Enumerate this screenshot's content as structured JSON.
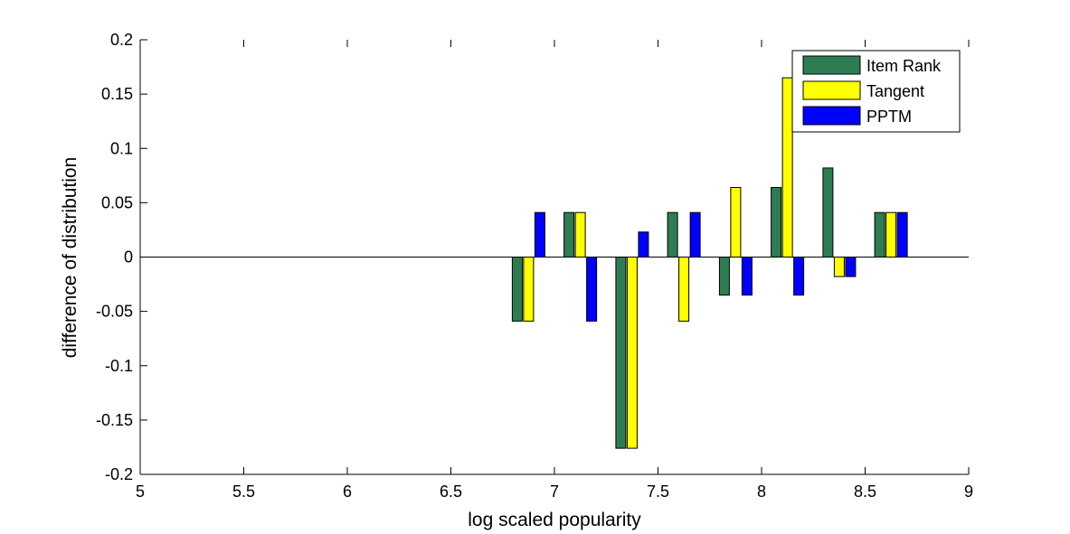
{
  "chart_data": {
    "type": "bar",
    "title": "",
    "xlabel": "log scaled popularity",
    "ylabel": "difference of distribution",
    "xlim": [
      5,
      9
    ],
    "ylim": [
      -0.2,
      0.2
    ],
    "xticks": [
      "5",
      "5.5",
      "6",
      "6.5",
      "7",
      "7.5",
      "8",
      "8.5",
      "9"
    ],
    "yticks": [
      "0.2",
      "0.15",
      "0.1",
      "0.05",
      "0",
      "-0.05",
      "-0.1",
      "-0.15",
      "-0.2"
    ],
    "grid": false,
    "legend_position": "top-right",
    "x": [
      6.875,
      7.125,
      7.375,
      7.625,
      7.875,
      8.125,
      8.375,
      8.625
    ],
    "series": [
      {
        "name": "Item Rank",
        "color": "#2e7d52",
        "values": [
          -0.059,
          0.041,
          -0.176,
          0.041,
          -0.035,
          0.064,
          0.082,
          0.041
        ]
      },
      {
        "name": "Tangent",
        "color": "#ffff00",
        "values": [
          -0.059,
          0.041,
          -0.176,
          -0.059,
          0.064,
          0.165,
          -0.018,
          0.041
        ]
      },
      {
        "name": "PPTM",
        "color": "#0000ff",
        "values": [
          0.041,
          -0.059,
          0.023,
          0.041,
          -0.035,
          -0.035,
          -0.018,
          0.041
        ]
      }
    ]
  }
}
